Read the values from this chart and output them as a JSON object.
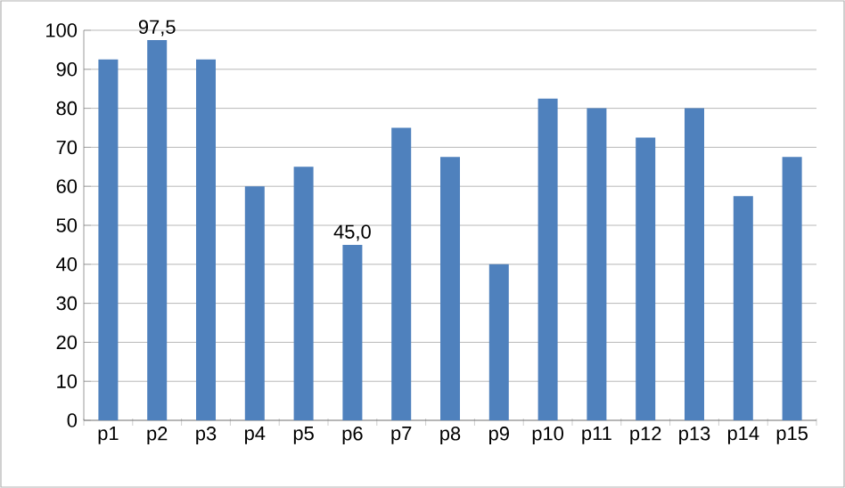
{
  "chart_data": {
    "type": "bar",
    "categories": [
      "p1",
      "p2",
      "p3",
      "p4",
      "p5",
      "p6",
      "p7",
      "p8",
      "p9",
      "p10",
      "p11",
      "p12",
      "p13",
      "p14",
      "p15"
    ],
    "values": [
      92.5,
      97.5,
      92.5,
      60,
      65,
      45,
      75,
      67.5,
      40,
      82.5,
      80,
      72.5,
      80,
      57.5,
      67.5
    ],
    "value_labels": [
      null,
      "97,5",
      null,
      null,
      null,
      "45,0",
      null,
      null,
      null,
      null,
      null,
      null,
      null,
      null,
      null
    ],
    "color": "#4f81bd",
    "ylim": [
      0,
      100
    ],
    "yticks": [
      0,
      10,
      20,
      30,
      40,
      50,
      60,
      70,
      80,
      90,
      100
    ],
    "grid": "y"
  }
}
